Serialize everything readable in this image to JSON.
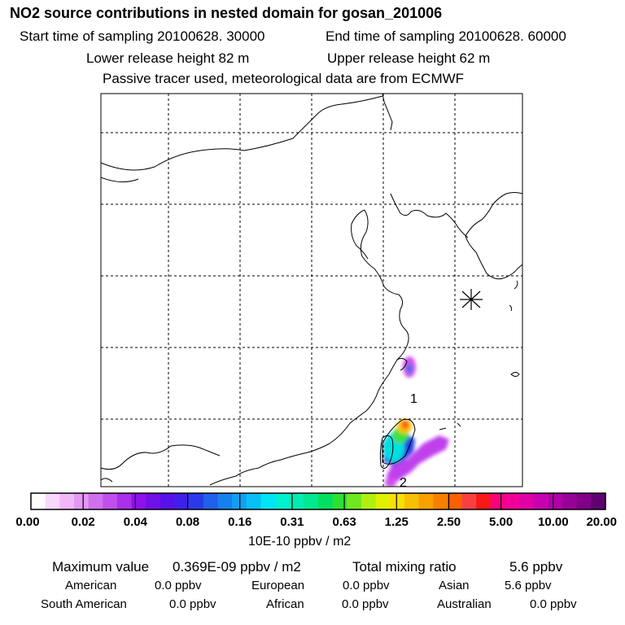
{
  "header": {
    "title": "NO2 source contributions in nested domain for gosan_201006",
    "start_time": "Start time of sampling 20100628. 30000",
    "end_time": "End time of sampling 20100628. 60000",
    "lower_height": "Lower release height   82 m",
    "upper_height": "Upper release height   62 m",
    "tracer_note": "Passive tracer used, meteorological data are from ECMWF"
  },
  "chart_data": {
    "type": "heatmap",
    "title": "NO2 source contributions in nested domain for gosan_201006",
    "colorbar": {
      "unit_label": "10E-10 ppbv / m2",
      "tick_labels": [
        "0.00",
        "0.02",
        "0.04",
        "0.08",
        "0.16",
        "0.31",
        "0.63",
        "1.25",
        "2.50",
        "5.00",
        "10.00",
        "20.00"
      ],
      "colors": [
        "#ffffff",
        "#f8d8fc",
        "#f0b8f8",
        "#e398f4",
        "#d070f0",
        "#c050ee",
        "#aa30ec",
        "#9010ea",
        "#7010e8",
        "#5810e8",
        "#4020e8",
        "#2a3ae8",
        "#2060ea",
        "#1880ee",
        "#10a0f2",
        "#08c0f6",
        "#00e4f4",
        "#00f0d0",
        "#00ecb0",
        "#00e890",
        "#00e060",
        "#30e030",
        "#70e820",
        "#b0f010",
        "#e0f000",
        "#f8e000",
        "#f8c000",
        "#f8a000",
        "#f88000",
        "#f86000",
        "#f84040",
        "#f81818",
        "#f80080",
        "#f00098",
        "#e000a8",
        "#c800b0",
        "#b000a8",
        "#980098",
        "#800088",
        "#600070"
      ]
    },
    "receptor": "gosan",
    "contour_labels": [
      "1",
      "2"
    ]
  },
  "stats": {
    "max_label": "Maximum value",
    "max_value": "0.369E-09 ppbv / m2",
    "total_label": "Total mixing ratio",
    "total_value": "5.6 ppbv"
  },
  "regions": [
    {
      "name": "American",
      "value": "0.0 ppbv"
    },
    {
      "name": "European",
      "value": "0.0 ppbv"
    },
    {
      "name": "Asian",
      "value": "5.6 ppbv"
    },
    {
      "name": "South American",
      "value": "0.0 ppbv"
    },
    {
      "name": "African",
      "value": "0.0 ppbv"
    },
    {
      "name": "Australian",
      "value": "0.0 ppbv"
    }
  ]
}
